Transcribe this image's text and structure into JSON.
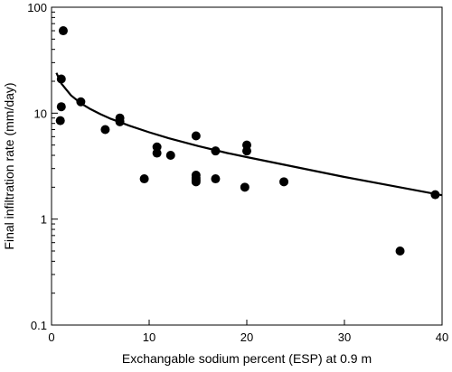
{
  "chart_data": {
    "type": "scatter",
    "title": "",
    "xlabel": "Exchangable sodium percent (ESP) at 0.9 m",
    "ylabel": "Final infiltration rate (mm/day)",
    "xlim": [
      0,
      40
    ],
    "ylim": [
      0.1,
      100
    ],
    "yscale": "log",
    "grid": false,
    "x_ticks": [
      0,
      10,
      20,
      30,
      40
    ],
    "x_tick_labels": [
      "0",
      "10",
      "20",
      "30",
      "40"
    ],
    "y_ticks": [
      0.1,
      1,
      10,
      100
    ],
    "y_tick_labels": [
      "0.1",
      "1",
      "10",
      "100"
    ],
    "series": [
      {
        "type": "scatter",
        "x": [
          1.2,
          1.0,
          1.0,
          0.9,
          3.0,
          5.5,
          7.0,
          7.0,
          9.5,
          10.8,
          10.8,
          12.2,
          14.8,
          14.8,
          14.8,
          14.8,
          14.8,
          16.8,
          16.8,
          19.8,
          20.0,
          20.0,
          23.8,
          35.7,
          39.3
        ],
        "y": [
          60,
          21,
          11.5,
          8.5,
          12.8,
          7.0,
          9.0,
          8.3,
          2.4,
          4.8,
          4.2,
          4.0,
          6.1,
          2.6,
          2.45,
          2.35,
          2.25,
          4.4,
          2.4,
          2.0,
          5.0,
          4.4,
          2.25,
          0.5,
          1.7
        ]
      },
      {
        "type": "line",
        "x": [
          0.5,
          1,
          2,
          3,
          4,
          5,
          6,
          8,
          10,
          12,
          15,
          18,
          20,
          25,
          30,
          35,
          40
        ],
        "y": [
          24,
          19.1,
          14.7,
          12.4,
          10.9,
          9.8,
          8.9,
          7.6,
          6.6,
          5.8,
          4.9,
          4.2,
          3.85,
          3.1,
          2.5,
          2.05,
          1.68
        ]
      }
    ]
  }
}
